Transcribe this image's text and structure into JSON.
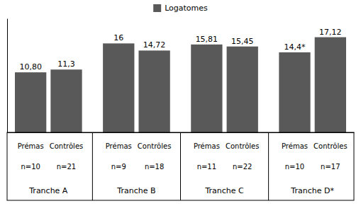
{
  "chart_data": {
    "type": "bar",
    "categories": [
      "Prémas",
      "Contrôles",
      "Prémas",
      "Contrôles",
      "Prémas",
      "Contrôles",
      "Prémas",
      "Contrôles"
    ],
    "category_n_labels": [
      "n=10",
      "n=21",
      "n=9",
      "n=18",
      "n=11",
      "n=22",
      "n=10",
      "n=17"
    ],
    "group_labels": [
      "Tranche A",
      "Tranche B",
      "Tranche C",
      "Tranche D*"
    ],
    "series": [
      {
        "name": "Logatomes",
        "color": "#595959",
        "values": [
          10.8,
          11.3,
          16,
          14.72,
          15.81,
          15.45,
          14.4,
          17.12
        ],
        "value_labels": [
          "10,80",
          "11,3",
          "16",
          "14,72",
          "15,81",
          "15,45",
          "14,4*",
          "17,12"
        ]
      }
    ],
    "ylim": [
      0,
      20.5
    ],
    "data_labels": true,
    "tick_labels": false,
    "legend": "top",
    "grid": false
  }
}
